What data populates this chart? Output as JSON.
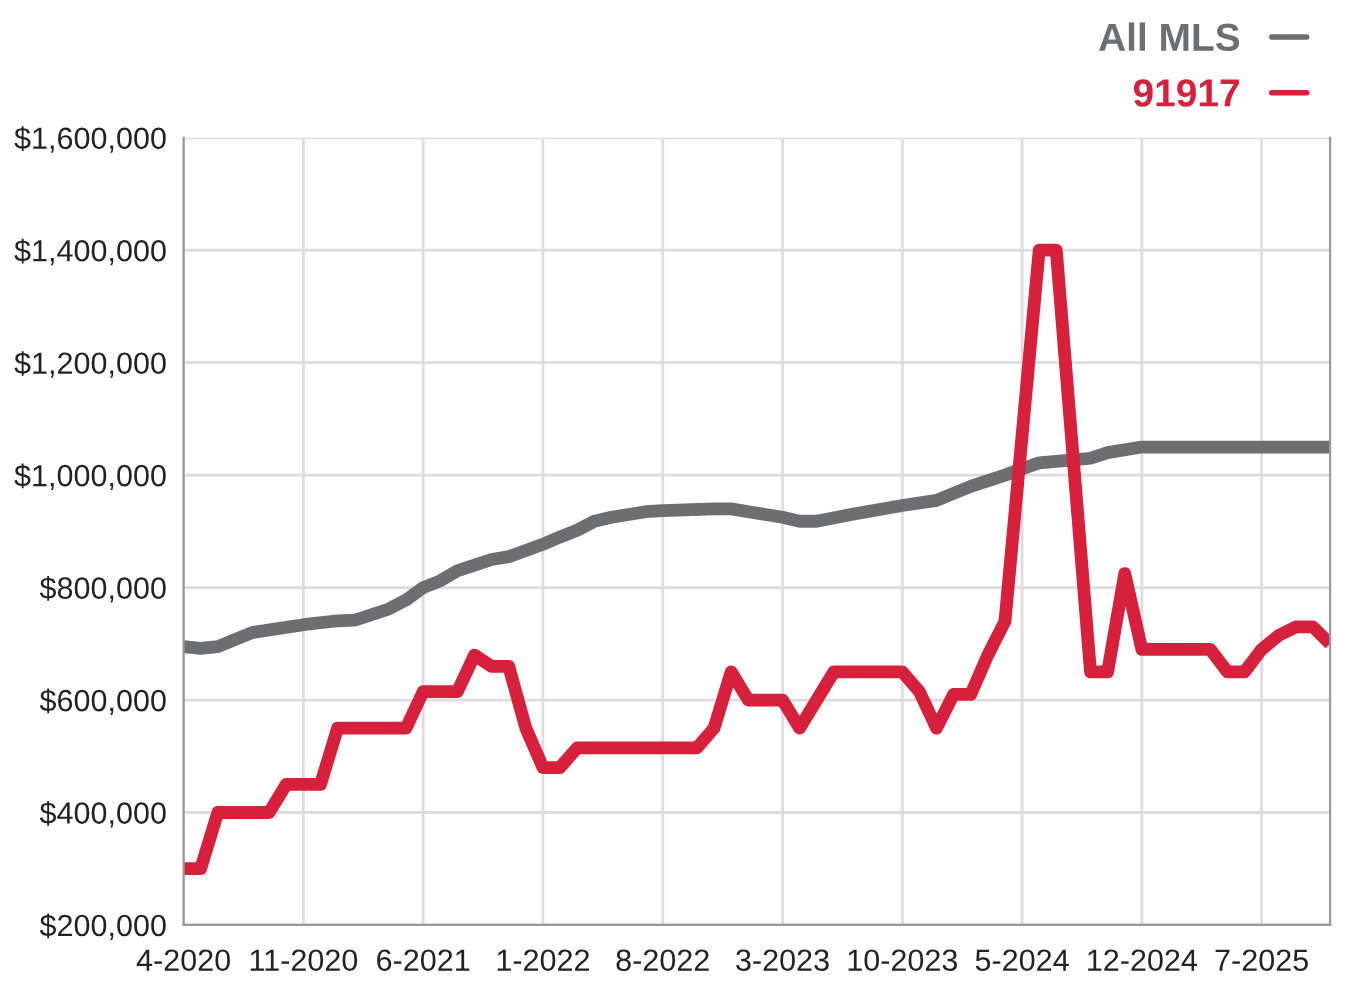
{
  "chart_data": {
    "type": "line",
    "xlim": [
      "2020-04",
      "2025-11"
    ],
    "xticks": [
      {
        "value": "2020-04",
        "label": "4-2020"
      },
      {
        "value": "2020-11",
        "label": "11-2020"
      },
      {
        "value": "2021-06",
        "label": "6-2021"
      },
      {
        "value": "2022-01",
        "label": "1-2022"
      },
      {
        "value": "2022-08",
        "label": "8-2022"
      },
      {
        "value": "2023-03",
        "label": "3-2023"
      },
      {
        "value": "2023-10",
        "label": "10-2023"
      },
      {
        "value": "2024-05",
        "label": "5-2024"
      },
      {
        "value": "2024-12",
        "label": "12-2024"
      },
      {
        "value": "2025-07",
        "label": "7-2025"
      }
    ],
    "ylim": [
      200000,
      1600000
    ],
    "yticks": [
      {
        "value": 200000,
        "label": "$200,000"
      },
      {
        "value": 400000,
        "label": "$400,000"
      },
      {
        "value": 600000,
        "label": "$600,000"
      },
      {
        "value": 800000,
        "label": "$800,000"
      },
      {
        "value": 1000000,
        "label": "$1,000,000"
      },
      {
        "value": 1200000,
        "label": "$1,200,000"
      },
      {
        "value": 1400000,
        "label": "$1,400,000"
      },
      {
        "value": 1600000,
        "label": "$1,600,000"
      }
    ],
    "grid": true,
    "legend": "top right",
    "marker": "none",
    "line_style": "solid",
    "series": [
      {
        "name": "All MLS",
        "color": "#6d6e71",
        "x": [
          "2020-04",
          "2020-05",
          "2020-06",
          "2020-08",
          "2020-11",
          "2021-01",
          "2021-02",
          "2021-04",
          "2021-05",
          "2021-06",
          "2021-07",
          "2021-08",
          "2021-09",
          "2021-10",
          "2021-11",
          "2022-01",
          "2022-02",
          "2022-03",
          "2022-04",
          "2022-05",
          "2022-06",
          "2022-07",
          "2022-08",
          "2022-11",
          "2022-12",
          "2023-01",
          "2023-02",
          "2023-03",
          "2023-04",
          "2023-05",
          "2023-07",
          "2023-10",
          "2023-12",
          "2024-02",
          "2024-04",
          "2024-06",
          "2024-08",
          "2024-09",
          "2024-10",
          "2024-12",
          "2025-11"
        ],
        "values": [
          695000,
          692000,
          695000,
          720000,
          734000,
          741000,
          742000,
          762000,
          778000,
          800000,
          812000,
          830000,
          840000,
          850000,
          855000,
          877000,
          890000,
          902000,
          918000,
          925000,
          930000,
          935000,
          937000,
          940000,
          940000,
          935000,
          930000,
          925000,
          918000,
          918000,
          930000,
          946000,
          955000,
          980000,
          1000000,
          1022000,
          1027000,
          1030000,
          1040000,
          1050000,
          1050000
        ]
      },
      {
        "name": "91917",
        "color": "#d7203b",
        "x": [
          "2020-04",
          "2020-05",
          "2020-06",
          "2020-09",
          "2020-10",
          "2020-12",
          "2021-01",
          "2021-05",
          "2021-06",
          "2021-08",
          "2021-09",
          "2021-10",
          "2021-11",
          "2021-12",
          "2022-01",
          "2022-02",
          "2022-03",
          "2022-10",
          "2022-11",
          "2022-12",
          "2023-01",
          "2023-03",
          "2023-04",
          "2023-06",
          "2023-10",
          "2023-11",
          "2023-12",
          "2024-01",
          "2024-02",
          "2024-03",
          "2024-04",
          "2024-06",
          "2024-07",
          "2024-09",
          "2024-10",
          "2024-11",
          "2024-12",
          "2025-04",
          "2025-05",
          "2025-06",
          "2025-07",
          "2025-08",
          "2025-09",
          "2025-10",
          "2025-11"
        ],
        "values": [
          300000,
          300000,
          400000,
          400000,
          450000,
          450000,
          550000,
          550000,
          615000,
          615000,
          680000,
          660000,
          660000,
          550000,
          480000,
          480000,
          515000,
          515000,
          550000,
          650000,
          600000,
          600000,
          550000,
          650000,
          650000,
          615000,
          550000,
          610000,
          610000,
          680000,
          740000,
          1400000,
          1400000,
          650000,
          650000,
          825000,
          690000,
          690000,
          650000,
          650000,
          690000,
          715000,
          730000,
          730000,
          700000
        ]
      }
    ]
  }
}
